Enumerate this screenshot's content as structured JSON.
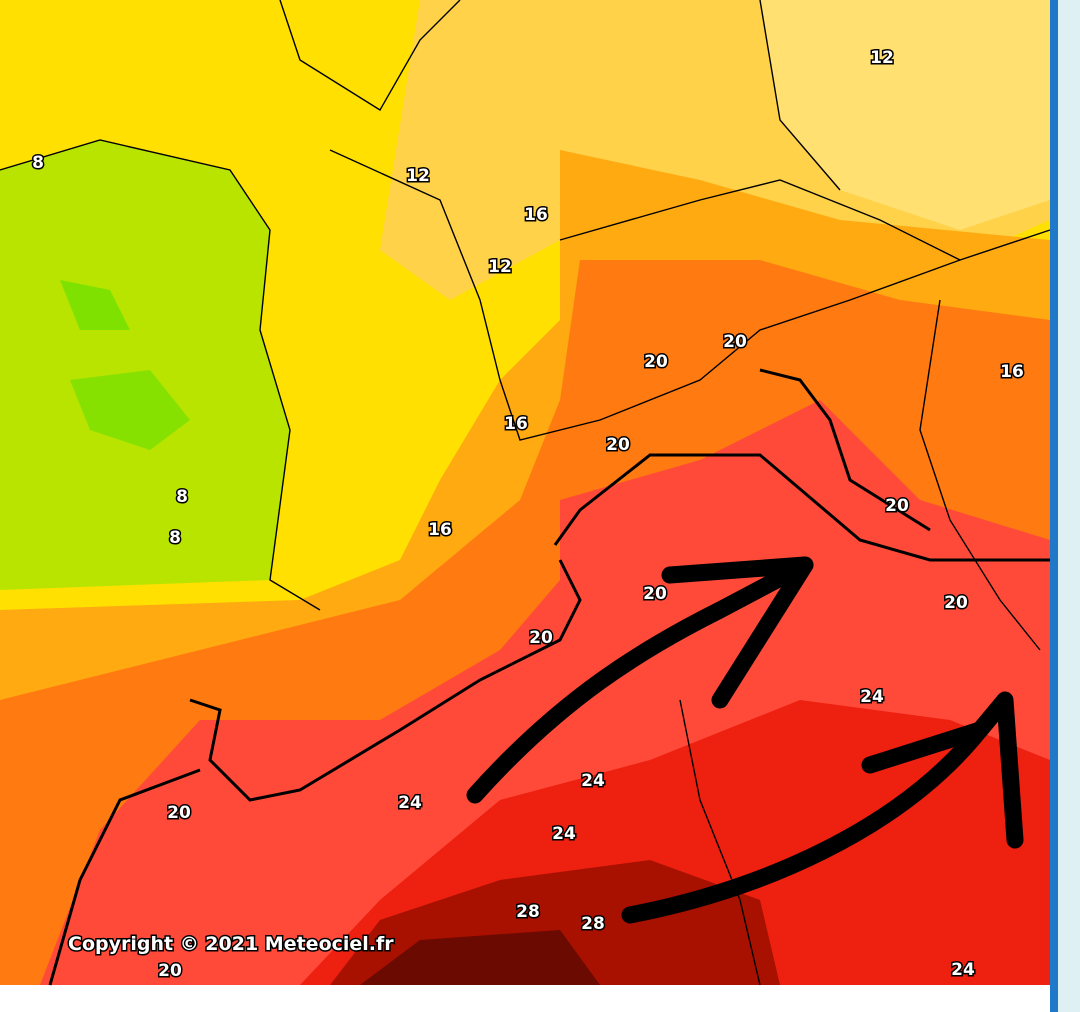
{
  "map": {
    "isotherm_labels": [
      12,
      8,
      12,
      16,
      12,
      20,
      20,
      16,
      16,
      20,
      8,
      20,
      8,
      16,
      20,
      20,
      20,
      24,
      24,
      24,
      20,
      24,
      28,
      28,
      20,
      24
    ],
    "copyright": "Copyright © 2021 Meteociel.fr"
  }
}
